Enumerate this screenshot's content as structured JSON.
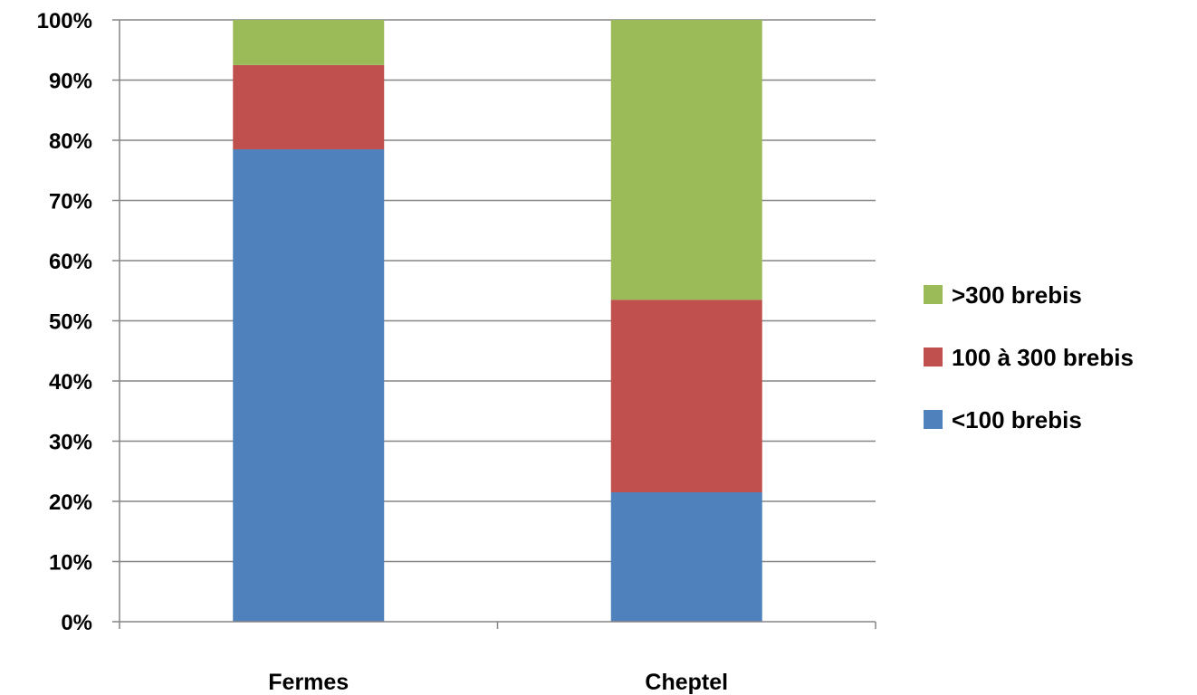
{
  "chart_data": {
    "type": "bar",
    "stacked": true,
    "percent": true,
    "categories": [
      "Fermes",
      "Cheptel"
    ],
    "series": [
      {
        "name": "<100 brebis",
        "values": [
          78.5,
          21.5
        ],
        "color": "#4F81BD"
      },
      {
        "name": "100 à 300 brebis",
        "values": [
          14,
          32
        ],
        "color": "#C0504D"
      },
      {
        "name": ">300 brebis",
        "values": [
          7.5,
          46.5
        ],
        "color": "#9BBB59"
      }
    ],
    "y_ticks": [
      "0%",
      "10%",
      "20%",
      "30%",
      "40%",
      "50%",
      "60%",
      "70%",
      "80%",
      "90%",
      "100%"
    ],
    "ylim": [
      0,
      100
    ],
    "grid": true,
    "legend_position": "right",
    "legend_order": [
      ">300 brebis",
      "100 à 300 brebis",
      "<100 brebis"
    ],
    "title": "",
    "xlabel": "",
    "ylabel": ""
  }
}
